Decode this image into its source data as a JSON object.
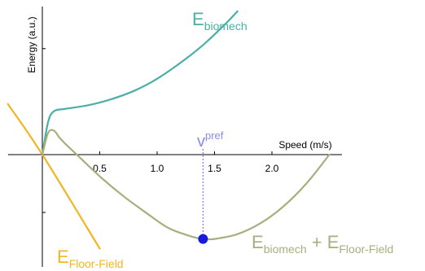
{
  "chart_data": {
    "type": "line",
    "xlabel": "Speed (m/s)",
    "ylabel": "Energy (a.u.)",
    "xticks": [
      "0.5",
      "1.0",
      "1.5",
      "2.0"
    ],
    "xlim": [
      -0.3,
      2.6
    ],
    "ylim": [
      -1.0,
      1.25
    ],
    "colors": {
      "biomech": "#4aafa6",
      "floor_field": "#f2b525",
      "sum": "#a8ae7d",
      "pref_marker": "#1a1adf",
      "pref_line": "#8a8ae6"
    },
    "series": [
      {
        "key": "biomech",
        "label_main": "E",
        "label_sub": "biomech",
        "x": [
          0,
          0.05,
          0.1,
          0.2,
          0.4,
          0.6,
          0.8,
          1.0,
          1.2,
          1.4,
          1.6,
          1.7
        ],
        "y": [
          0,
          0.27,
          0.36,
          0.38,
          0.41,
          0.46,
          0.53,
          0.63,
          0.76,
          0.91,
          1.09,
          1.19
        ]
      },
      {
        "key": "floor_field",
        "label_main": "E",
        "label_sub": "Floor-Field",
        "x": [
          -0.3,
          0,
          0.5
        ],
        "y": [
          0.42,
          0,
          -0.78
        ]
      },
      {
        "key": "sum",
        "label_main": "E",
        "label_sub": "biomech",
        "label_plus": "+",
        "label_main2": "E",
        "label_sub2": "Floor-Field",
        "x": [
          0,
          0.05,
          0.1,
          0.15,
          0.2,
          0.3,
          0.5,
          0.7,
          0.9,
          1.1,
          1.3,
          1.4,
          1.5,
          1.7,
          1.9,
          2.1,
          2.3,
          2.5
        ],
        "y": [
          0,
          0.18,
          0.2,
          0.14,
          0.09,
          0.0,
          -0.18,
          -0.34,
          -0.48,
          -0.61,
          -0.68,
          -0.7,
          -0.7,
          -0.66,
          -0.57,
          -0.43,
          -0.24,
          0.0
        ]
      }
    ],
    "marker": {
      "label_main": "v",
      "label_sup": "pref",
      "x": 1.4,
      "y": -0.7
    }
  }
}
